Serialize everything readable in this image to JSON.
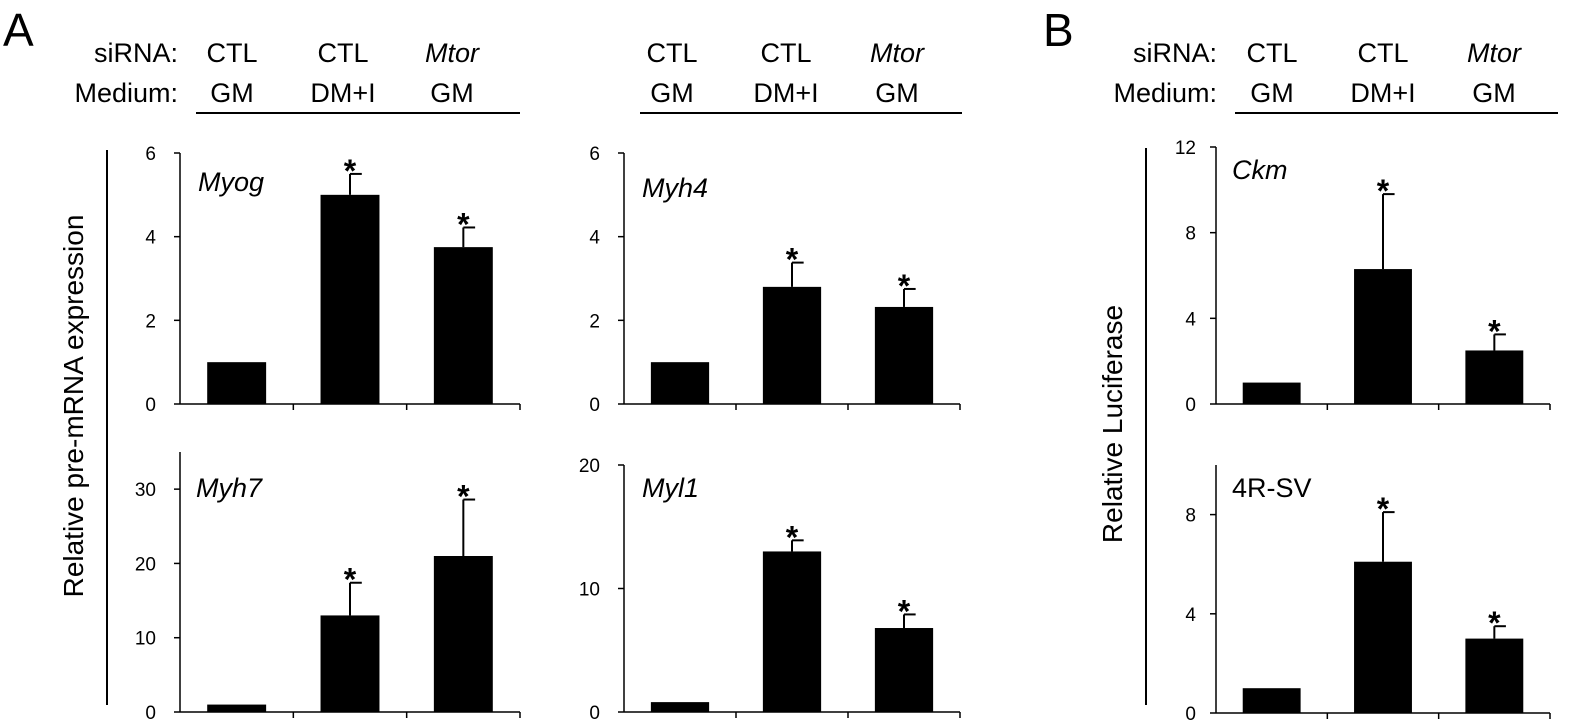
{
  "panel_labels": [
    "A",
    "B"
  ],
  "header": {
    "row_labels": [
      "siRNA:",
      "Medium:"
    ],
    "groups": [
      {
        "sirna": "CTL",
        "medium": "GM",
        "sirna_italic": false
      },
      {
        "sirna": "CTL",
        "medium": "DM+I",
        "sirna_italic": false
      },
      {
        "sirna": "Mtor",
        "medium": "GM",
        "sirna_italic": true
      }
    ]
  },
  "y_axis_labels": {
    "A": "Relative pre-mRNA expression",
    "B": "Relative Luciferase"
  },
  "colors": {
    "bar": "#000000",
    "axis": "#000000",
    "background": "#ffffff"
  },
  "chart_data": [
    {
      "id": "myog",
      "panel": "A",
      "type": "bar",
      "title": "Myog",
      "title_italic": true,
      "categories": [
        "CTL GM",
        "CTL DM+I",
        "Mtor GM"
      ],
      "values": [
        1.0,
        5.0,
        3.75
      ],
      "errors": [
        0,
        0.5,
        0.47
      ],
      "significant": [
        false,
        true,
        true
      ],
      "ylim": [
        0,
        6
      ],
      "yticks": [
        0,
        2,
        4,
        6
      ],
      "ytick_labels": [
        "0",
        "2",
        "4",
        "6"
      ]
    },
    {
      "id": "myh4",
      "panel": "A",
      "type": "bar",
      "title": "Myh4",
      "title_italic": true,
      "categories": [
        "CTL GM",
        "CTL DM+I",
        "Mtor GM"
      ],
      "values": [
        1.0,
        2.8,
        2.32
      ],
      "errors": [
        0,
        0.58,
        0.43
      ],
      "significant": [
        false,
        true,
        true
      ],
      "ylim": [
        0,
        6
      ],
      "yticks": [
        0,
        2,
        4,
        6
      ],
      "ytick_labels": [
        "0",
        "2",
        "4",
        "6"
      ]
    },
    {
      "id": "myh7",
      "panel": "A",
      "type": "bar",
      "title": "Myh7",
      "title_italic": true,
      "categories": [
        "CTL GM",
        "CTL DM+I",
        "Mtor GM"
      ],
      "values": [
        1.0,
        13.0,
        21.0
      ],
      "errors": [
        0,
        4.4,
        7.6
      ],
      "significant": [
        false,
        true,
        true
      ],
      "ylim": [
        0,
        35
      ],
      "yticks": [
        0,
        10,
        20,
        30
      ],
      "ytick_labels": [
        "0",
        "10",
        "20",
        "30"
      ]
    },
    {
      "id": "myl1",
      "panel": "A",
      "type": "bar",
      "title": "Myl1",
      "title_italic": true,
      "categories": [
        "CTL GM",
        "CTL DM+I",
        "Mtor GM"
      ],
      "values": [
        0.8,
        13.0,
        6.8
      ],
      "errors": [
        0,
        0.9,
        1.1
      ],
      "significant": [
        false,
        true,
        true
      ],
      "ylim": [
        0,
        20
      ],
      "yticks": [
        0,
        10,
        20
      ],
      "ytick_labels": [
        "0",
        "10",
        "20"
      ]
    },
    {
      "id": "ckm",
      "panel": "B",
      "type": "bar",
      "title": "Ckm",
      "title_italic": true,
      "categories": [
        "CTL GM",
        "CTL DM+I",
        "Mtor GM"
      ],
      "values": [
        1.0,
        6.3,
        2.5
      ],
      "errors": [
        0,
        3.5,
        0.75
      ],
      "significant": [
        false,
        true,
        true
      ],
      "ylim": [
        0,
        12
      ],
      "yticks": [
        0,
        4,
        8,
        12
      ],
      "ytick_labels": [
        "0",
        "4",
        "8",
        "12"
      ]
    },
    {
      "id": "4rsv",
      "panel": "B",
      "type": "bar",
      "title": "4R-SV",
      "title_italic": false,
      "categories": [
        "CTL GM",
        "CTL DM+I",
        "Mtor GM"
      ],
      "values": [
        1.0,
        6.1,
        3.0
      ],
      "errors": [
        0,
        2.0,
        0.5
      ],
      "significant": [
        false,
        true,
        true
      ],
      "ylim": [
        0,
        10
      ],
      "yticks": [
        0,
        4,
        8
      ],
      "ytick_labels": [
        "0",
        "4",
        "8"
      ]
    }
  ]
}
